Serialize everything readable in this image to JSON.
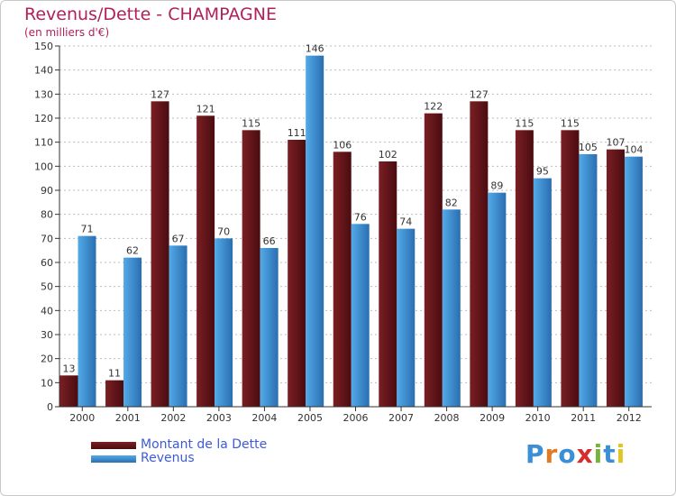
{
  "colors": {
    "debt": "#7a1f24",
    "debt_dark": "#4a0c10",
    "revenue": "#53aae8",
    "revenue_dark": "#2a6eb0",
    "title": "#b0205a",
    "legend_text": "#3d5bd9"
  },
  "header": {
    "title": "Revenus/Dette - CHAMPAGNE",
    "subtitle": "(en milliers d'€)"
  },
  "legend": {
    "debt_label": "Montant de la Dette",
    "revenue_label": "Revenus"
  },
  "logo": {
    "text": "Proxiti"
  },
  "chart_data": {
    "type": "bar",
    "title": "Revenus/Dette - CHAMPAGNE",
    "ylabel": "(en milliers d'€)",
    "xlabel": "",
    "categories": [
      "2000",
      "2001",
      "2002",
      "2003",
      "2004",
      "2005",
      "2006",
      "2007",
      "2008",
      "2009",
      "2010",
      "2011",
      "2012"
    ],
    "series": [
      {
        "name": "Montant de la Dette",
        "values": [
          13,
          11,
          127,
          121,
          115,
          111,
          106,
          102,
          122,
          127,
          115,
          115,
          107
        ]
      },
      {
        "name": "Revenus",
        "values": [
          71,
          62,
          67,
          70,
          66,
          146,
          76,
          74,
          82,
          89,
          95,
          105,
          104
        ]
      }
    ],
    "ylim": [
      0,
      150
    ],
    "yticks": [
      0,
      10,
      20,
      30,
      40,
      50,
      60,
      70,
      80,
      90,
      100,
      110,
      120,
      130,
      140,
      150
    ],
    "grid": true,
    "legend_position": "bottom-left"
  }
}
